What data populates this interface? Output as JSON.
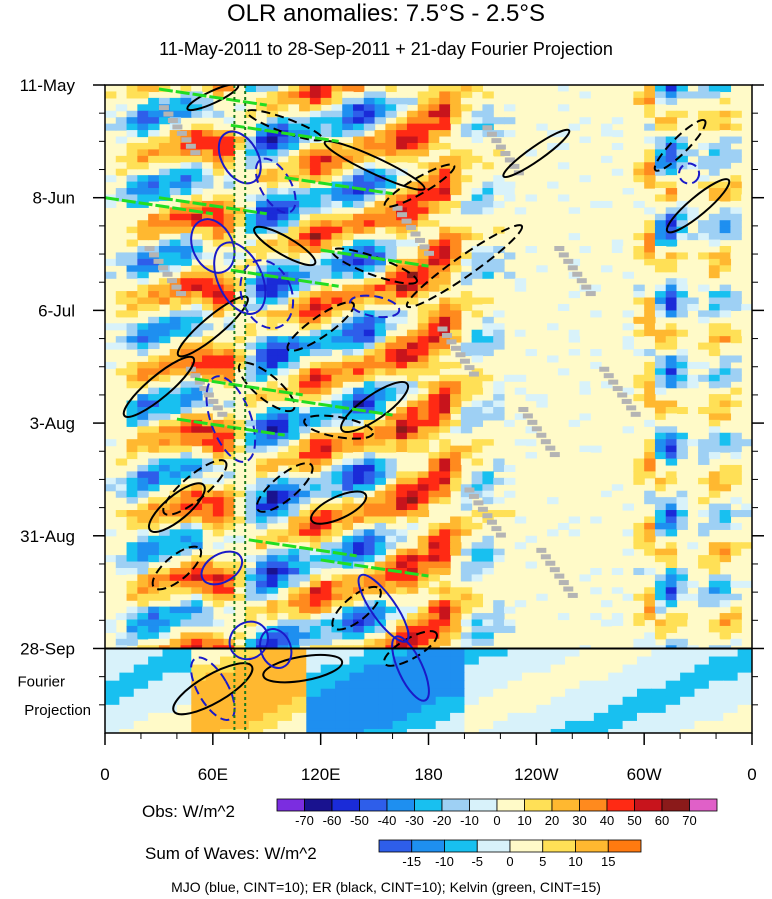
{
  "chart_data": {
    "type": "heatmap",
    "title": "OLR anomalies: 7.5°S - 2.5°S",
    "subtitle": "11-May-2011 to 28-Sep-2011 + 21-day Fourier Projection",
    "x_ticks": [
      "0",
      "60E",
      "120E",
      "180",
      "120W",
      "60W",
      "0"
    ],
    "x_lon_values": [
      0,
      60,
      120,
      180,
      240,
      300,
      360
    ],
    "y_ticks": [
      "11-May",
      "8-Jun",
      "6-Jul",
      "3-Aug",
      "31-Aug",
      "28-Sep"
    ],
    "y_day_values": [
      0,
      28,
      56,
      84,
      112,
      140
    ],
    "day_range": [
      0,
      161
    ],
    "projection_label_line1": "Fourier",
    "projection_label_line2": "Projection",
    "projection_start_day": 140,
    "obs_colorbar": {
      "label": "Obs: W/m^2",
      "levels": [
        "-70",
        "-60",
        "-50",
        "-40",
        "-30",
        "-20",
        "-10",
        "0",
        "10",
        "20",
        "30",
        "40",
        "50",
        "60",
        "70"
      ],
      "colors": [
        "#7B2DE0",
        "#19128F",
        "#1A2BD8",
        "#2E5EEA",
        "#1E8FF0",
        "#18C0F0",
        "#9ED0F4",
        "#D8F2FA",
        "#FFFAC8",
        "#FFE056",
        "#FFB830",
        "#FF8A1E",
        "#FF2A14",
        "#C8141C",
        "#8B1A1A",
        "#E060C8"
      ]
    },
    "waves_colorbar": {
      "label": "Sum of Waves: W/m^2",
      "levels": [
        "-15",
        "-10",
        "-5",
        "0",
        "5",
        "10",
        "15"
      ],
      "colors": [
        "#2E5EEA",
        "#1E8FF0",
        "#18C0F0",
        "#D8F2FA",
        "#FFFAC8",
        "#FFE056",
        "#FFB830",
        "#FF7A10"
      ]
    },
    "contour_legend": "MJO (blue, CINT=10); ER (black, CINT=10); Kelvin (green, CINT=15)",
    "series_colors": {
      "mjo": "#1A1AC8",
      "er": "#000000",
      "kelvin": "#22DD22",
      "missing": "#B4B4B4"
    },
    "vertical_reference_lons": [
      72,
      78
    ]
  }
}
